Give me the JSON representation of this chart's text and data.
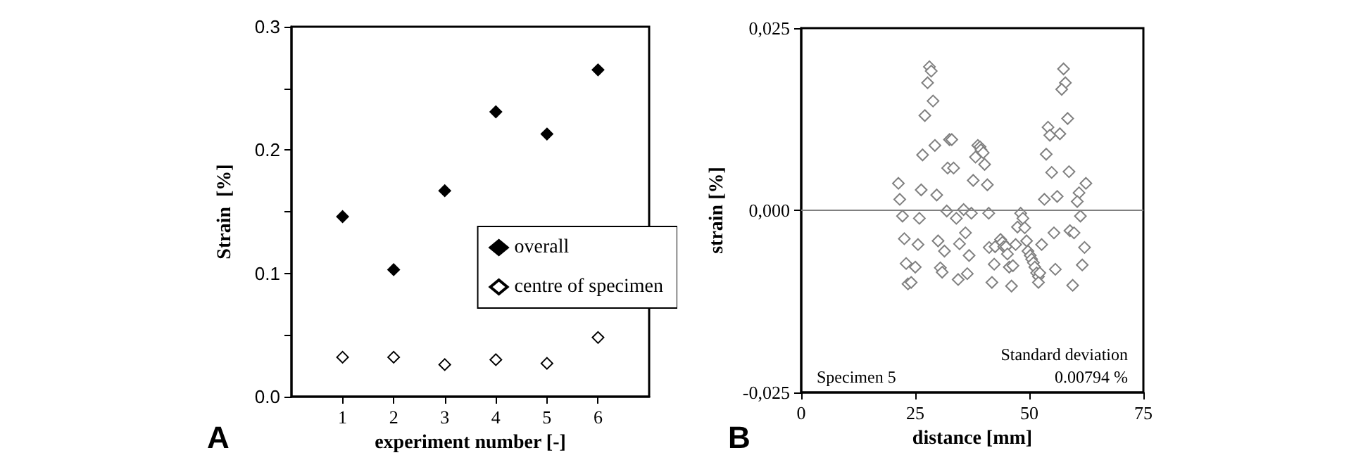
{
  "chart_data": [
    {
      "type": "scatter",
      "xlabel": "experiment number [-]",
      "ylabel": "Strain  [%]",
      "x": [
        1,
        2,
        3,
        4,
        5,
        6
      ],
      "xlim": [
        0,
        7
      ],
      "xticks": [
        1,
        2,
        3,
        4,
        5,
        6
      ],
      "ylim": [
        0,
        0.3
      ],
      "yticks": [
        {
          "value": 0,
          "label": "0.0"
        },
        {
          "value": 0.05,
          "label": null
        },
        {
          "value": 0.1,
          "label": "0.1"
        },
        {
          "value": 0.15,
          "label": null
        },
        {
          "value": 0.2,
          "label": "0.2"
        },
        {
          "value": 0.25,
          "label": null
        },
        {
          "value": 0.3,
          "label": "0.3"
        }
      ],
      "marker": "diamond",
      "legend": "right",
      "grid": false,
      "annotations": [
        "A"
      ],
      "series": [
        {
          "name": "overall",
          "color": "#000000",
          "values": [
            0.146,
            0.103,
            0.167,
            0.231,
            0.213,
            0.265
          ]
        },
        {
          "name": "centre of specimen",
          "color": "#000000",
          "values": [
            0.032,
            0.032,
            0.026,
            0.03,
            0.027,
            0.048
          ]
        }
      ]
    },
    {
      "type": "scatter",
      "xlabel": "distance [mm]",
      "ylabel": "strain [%]",
      "xlim": [
        0,
        75
      ],
      "xticks": [
        0,
        25,
        50,
        75
      ],
      "ylim": [
        -0.025,
        0.025
      ],
      "yticks": [
        {
          "value": -0.025,
          "label": "-0,025"
        },
        {
          "value": 0,
          "label": "0,000"
        },
        {
          "value": 0.025,
          "label": "0,025"
        }
      ],
      "marker": "diamond",
      "grid": false,
      "legend": false,
      "ref_lines": [
        {
          "axis": "y",
          "value": 0,
          "color": "#808080"
        }
      ],
      "annotations": [
        "B",
        "Specimen 5",
        "Standard deviation",
        "0.00794 %"
      ],
      "series": [
        {
          "color": "#808080",
          "x": [
            28.1,
            28.5,
            27.7,
            28.9,
            27.1,
            26.6,
            29.3,
            32.5,
            33.0,
            32.1,
            33.4,
            21.3,
            21.6,
            26.3,
            29.7,
            22.2,
            25.9,
            31.9,
            34.0,
            35.6,
            37.3,
            41.1,
            38.7,
            39.2,
            39.4,
            39.9,
            38.2,
            40.2,
            37.7,
            40.8,
            57.5,
            57.9,
            57.1,
            58.4,
            54.1,
            54.5,
            56.7,
            53.7,
            54.9,
            58.7,
            62.4,
            60.9,
            60.5,
            53.3,
            56.1,
            61.2,
            48.1,
            48.6,
            47.4,
            49.0,
            55.4,
            58.9,
            59.8,
            36.0,
            22.6,
            25.6,
            30.0,
            31.4,
            34.7,
            36.8,
            23.0,
            25.0,
            30.5,
            30.9,
            34.4,
            36.4,
            23.4,
            24.1,
            41.8,
            41.2,
            42.5,
            42.3,
            43.7,
            44.1,
            44.4,
            44.9,
            45.2,
            45.6,
            46.4,
            46.1,
            47.0,
            49.4,
            49.7,
            50.2,
            50.5,
            50.9,
            51.2,
            51.6,
            52.0,
            52.3,
            52.0,
            52.7,
            55.7,
            59.5,
            61.6,
            62.1
          ],
          "values": [
            0.0197,
            0.0191,
            0.0175,
            0.015,
            0.013,
            0.0076,
            0.0089,
            0.0097,
            0.0097,
            0.0058,
            0.0058,
            0.0037,
            0.0015,
            0.0028,
            0.0021,
            -0.0008,
            -0.0011,
            -0.0001,
            -0.0011,
            0.0001,
            -0.0004,
            -0.0004,
            0.0089,
            0.0087,
            0.0083,
            0.0079,
            0.0073,
            0.0063,
            0.0041,
            0.0035,
            0.0194,
            0.0175,
            0.0166,
            0.0126,
            0.0114,
            0.0103,
            0.0105,
            0.0077,
            0.0052,
            0.0053,
            0.0037,
            0.0024,
            0.0012,
            0.0015,
            0.0019,
            -0.0008,
            -0.0004,
            -0.0011,
            -0.0023,
            -0.0024,
            -0.0031,
            -0.0028,
            -0.0031,
            -0.0031,
            -0.0039,
            -0.0047,
            -0.0042,
            -0.0056,
            -0.0046,
            -0.0062,
            -0.0073,
            -0.0078,
            -0.0079,
            -0.0085,
            -0.0095,
            -0.0087,
            -0.0101,
            -0.0099,
            -0.0099,
            -0.0051,
            -0.005,
            -0.0074,
            -0.004,
            -0.0044,
            -0.005,
            -0.005,
            -0.006,
            -0.0078,
            -0.0076,
            -0.0104,
            -0.0047,
            -0.0042,
            -0.0056,
            -0.0062,
            -0.0067,
            -0.0072,
            -0.0078,
            -0.0086,
            -0.0091,
            -0.0086,
            -0.0099,
            -0.0047,
            -0.0081,
            -0.0103,
            -0.0075,
            -0.0051
          ]
        }
      ]
    }
  ]
}
